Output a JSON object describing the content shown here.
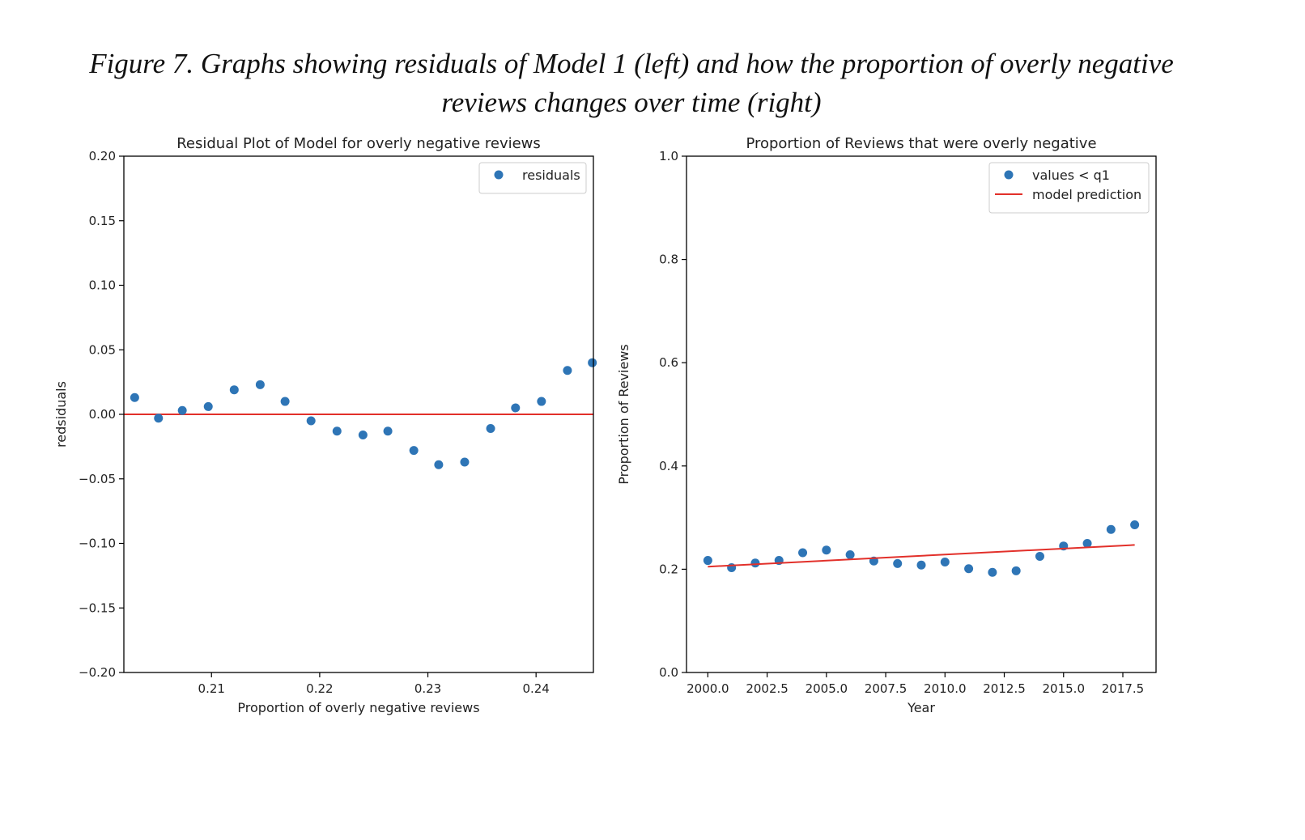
{
  "caption": {
    "line1": "Figure 7. Graphs showing residuals of Model 1 (left) and how the proportion of overly negative",
    "line2": "reviews changes over time (right)"
  },
  "colors": {
    "points": "#2e75b6",
    "line": "#e2302a",
    "axis": "#000000",
    "text": "#222222"
  },
  "chart_data": [
    {
      "type": "scatter",
      "title": "Residual Plot of Model for overly negative reviews",
      "xlabel": "Proportion of overly negative reviews",
      "ylabel": "redsiduals",
      "xlim": [
        0.2019,
        0.2453
      ],
      "ylim": [
        -0.2,
        0.2
      ],
      "xticks": [
        0.21,
        0.22,
        0.23,
        0.24
      ],
      "xtick_labels": [
        "0.21",
        "0.22",
        "0.23",
        "0.24"
      ],
      "yticks": [
        -0.2,
        -0.15,
        -0.1,
        -0.05,
        0.0,
        0.05,
        0.1,
        0.15,
        0.2
      ],
      "ytick_labels": [
        "−0.20",
        "−0.15",
        "−0.10",
        "−0.05",
        "0.00",
        "0.05",
        "0.10",
        "0.15",
        "0.20"
      ],
      "grid": false,
      "legend_position": "top-right",
      "series": [
        {
          "name": "residuals",
          "kind": "points",
          "x": [
            0.2029,
            0.2051,
            0.2073,
            0.2097,
            0.2121,
            0.2145,
            0.2168,
            0.2192,
            0.2216,
            0.224,
            0.2263,
            0.2287,
            0.231,
            0.2334,
            0.2358,
            0.2381,
            0.2405,
            0.2429,
            0.2452
          ],
          "y": [
            0.013,
            -0.003,
            0.003,
            0.006,
            0.019,
            0.023,
            0.01,
            -0.005,
            -0.013,
            -0.016,
            -0.013,
            -0.028,
            -0.039,
            -0.037,
            -0.011,
            0.005,
            0.01,
            0.034,
            0.04
          ]
        }
      ],
      "reference_line": {
        "y": 0.0
      }
    },
    {
      "type": "scatter",
      "title": "Proportion of Reviews that were overly negative",
      "xlabel": "Year",
      "ylabel": "Proportion of Reviews",
      "xlim": [
        1999.1,
        2018.9
      ],
      "ylim": [
        0.0,
        1.0
      ],
      "xticks": [
        2000.0,
        2002.5,
        2005.0,
        2007.5,
        2010.0,
        2012.5,
        2015.0,
        2017.5
      ],
      "xtick_labels": [
        "2000.0",
        "2002.5",
        "2005.0",
        "2007.5",
        "2010.0",
        "2012.5",
        "2015.0",
        "2017.5"
      ],
      "yticks": [
        0.0,
        0.2,
        0.4,
        0.6,
        0.8,
        1.0
      ],
      "ytick_labels": [
        "0.0",
        "0.2",
        "0.4",
        "0.6",
        "0.8",
        "1.0"
      ],
      "grid": false,
      "legend_position": "top-right",
      "series": [
        {
          "name": "values < q1",
          "kind": "points",
          "x": [
            2000,
            2001,
            2002,
            2003,
            2004,
            2005,
            2006,
            2007,
            2008,
            2009,
            2010,
            2011,
            2012,
            2013,
            2014,
            2015,
            2016,
            2017,
            2018
          ],
          "y": [
            0.217,
            0.203,
            0.212,
            0.217,
            0.232,
            0.237,
            0.228,
            0.216,
            0.211,
            0.208,
            0.214,
            0.201,
            0.194,
            0.197,
            0.225,
            0.245,
            0.25,
            0.277,
            0.286
          ]
        },
        {
          "name": "model prediction",
          "kind": "line",
          "x": [
            2000,
            2018
          ],
          "y": [
            0.205,
            0.247
          ]
        }
      ]
    }
  ]
}
